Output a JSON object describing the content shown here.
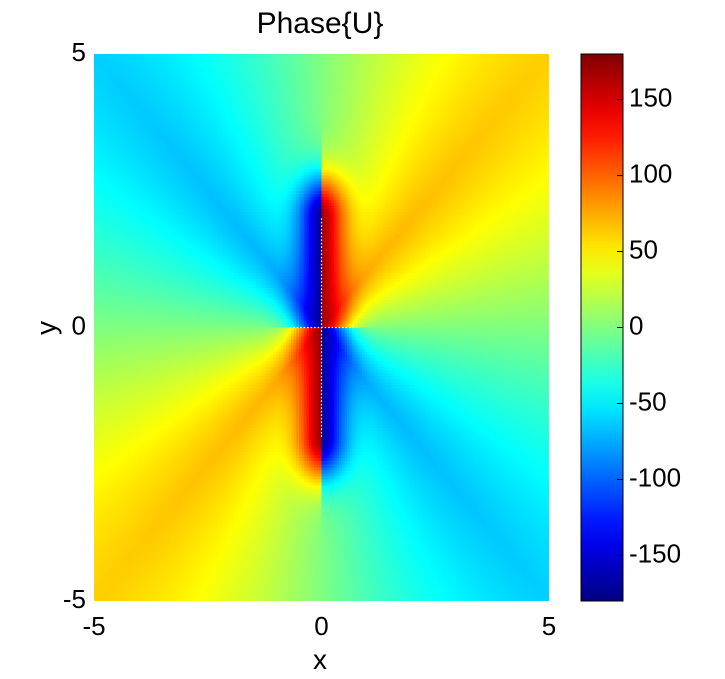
{
  "chart_data": {
    "type": "heatmap",
    "title": "Phase{U}",
    "xlabel": "x",
    "ylabel": "y",
    "xlim": [
      -5,
      5
    ],
    "ylim": [
      -5,
      5
    ],
    "x_ticks": [
      -5,
      0,
      5
    ],
    "y_ticks": [
      -5,
      0,
      5
    ],
    "x_tick_labels": [
      "-5",
      "0",
      "5"
    ],
    "y_tick_labels": [
      "-5",
      "0",
      "5"
    ],
    "colormap": "jet",
    "clim": [
      -180,
      180
    ],
    "colorbar_ticks": [
      150,
      100,
      50,
      0,
      -50,
      -100,
      -150
    ],
    "colorbar_tick_labels": [
      "150",
      "100",
      "50",
      "0",
      "-50",
      "-100",
      "-150"
    ],
    "field_features": {
      "phase_branch_cuts": [
        {
          "from": [
            0,
            -2
          ],
          "to": [
            0,
            2
          ]
        },
        {
          "from": [
            -0.7,
            0
          ],
          "to": [
            0.8,
            0
          ]
        }
      ],
      "quadrant_sign": "positive phase where x*y > 0, negative phase where x*y < 0",
      "near_cut_magnitude_deg": 170
    },
    "grid": false
  }
}
